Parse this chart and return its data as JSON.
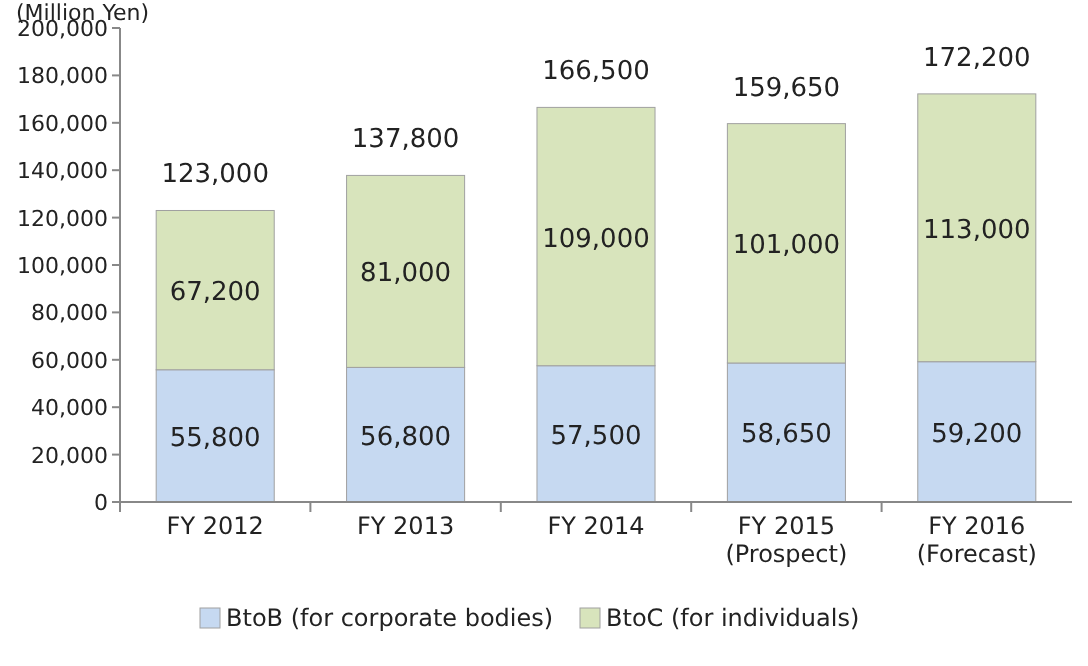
{
  "chart_data": {
    "type": "bar",
    "stacked": true,
    "ylabel": "(Million Yen)",
    "categories": [
      "FY 2012",
      "FY 2013",
      "FY 2014",
      "FY 2015\n(Prospect)",
      "FY 2016\n(Forecast)"
    ],
    "series": [
      {
        "name": "BtoB (for corporate bodies)",
        "color": "#c6d9f1",
        "values": [
          55800,
          56800,
          57500,
          58650,
          59200
        ],
        "value_labels": [
          "55,800",
          "56,800",
          "57,500",
          "58,650",
          "59,200"
        ]
      },
      {
        "name": "BtoC (for individuals)",
        "color": "#d8e4bc",
        "values": [
          67200,
          81000,
          109000,
          101000,
          113000
        ],
        "value_labels": [
          "67,200",
          "81,000",
          "109,000",
          "101,000",
          "113,000"
        ]
      }
    ],
    "totals": [
      "123,000",
      "137,800",
      "166,500",
      "159,650",
      "172,200"
    ],
    "ylim": [
      0,
      200000
    ],
    "yticks": [
      {
        "value": 0,
        "label": "0"
      },
      {
        "value": 20000,
        "label": "20,000"
      },
      {
        "value": 40000,
        "label": "40,000"
      },
      {
        "value": 60000,
        "label": "60,000"
      },
      {
        "value": 80000,
        "label": "80,000"
      },
      {
        "value": 100000,
        "label": "100,000"
      },
      {
        "value": 120000,
        "label": "120,000"
      },
      {
        "value": 140000,
        "label": "140,000"
      },
      {
        "value": 160000,
        "label": "160,000"
      },
      {
        "value": 180000,
        "label": "180,000"
      },
      {
        "value": 200000,
        "label": "200,000"
      }
    ],
    "grid": false,
    "legend": "bottom"
  }
}
